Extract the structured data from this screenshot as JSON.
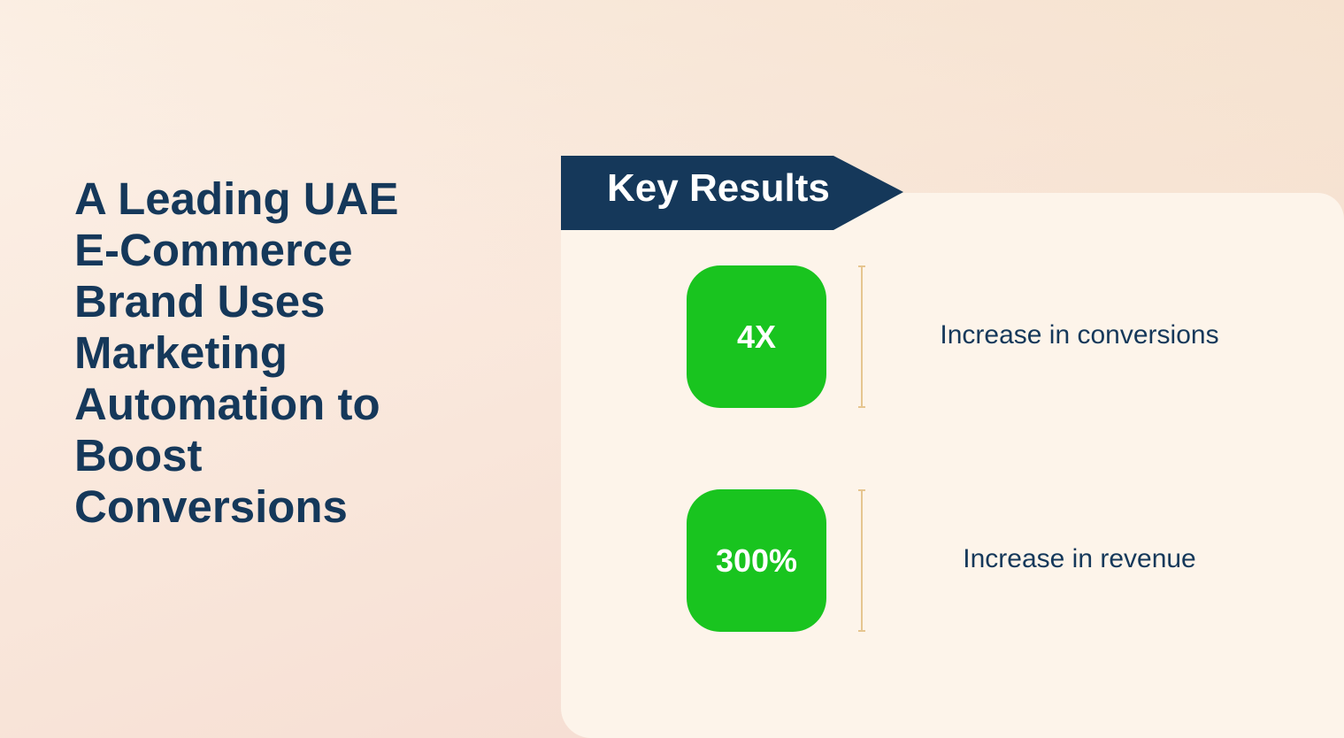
{
  "title": "A Leading UAE E-Commerce Brand Uses Marketing Automation to Boost Conversions",
  "banner": {
    "label": "Key Results"
  },
  "results": [
    {
      "value": "4X",
      "description": "Increase in conversions"
    },
    {
      "value": "300%",
      "description": "Increase in revenue"
    }
  ],
  "colors": {
    "navy": "#15385a",
    "green": "#19c41f",
    "card": "#fdf4ea",
    "divider": "#e6c58f"
  }
}
